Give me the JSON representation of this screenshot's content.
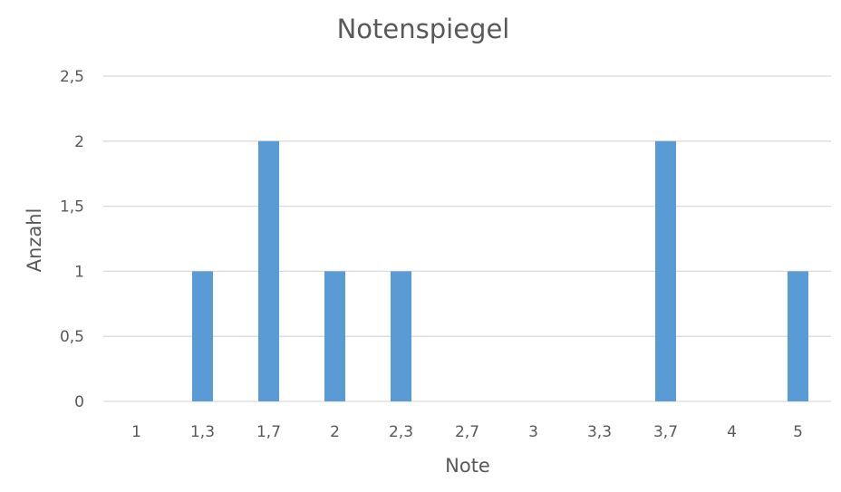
{
  "chart_data": {
    "type": "bar",
    "title": "Notenspiegel",
    "xlabel": "Note",
    "ylabel": "Anzahl",
    "categories": [
      "1",
      "1,3",
      "1,7",
      "2",
      "2,3",
      "2,7",
      "3",
      "3,3",
      "3,7",
      "4",
      "5"
    ],
    "values": [
      0,
      1,
      2,
      1,
      1,
      0,
      0,
      0,
      2,
      0,
      1
    ],
    "ylim": [
      0,
      2.5
    ],
    "yticks": [
      {
        "value": 0,
        "label": "0"
      },
      {
        "value": 0.5,
        "label": "0,5"
      },
      {
        "value": 1,
        "label": "1"
      },
      {
        "value": 1.5,
        "label": "1,5"
      },
      {
        "value": 2,
        "label": "2"
      },
      {
        "value": 2.5,
        "label": "2,5"
      }
    ],
    "grid": true,
    "legend": "none",
    "bar_color": "#5b9bd5"
  }
}
